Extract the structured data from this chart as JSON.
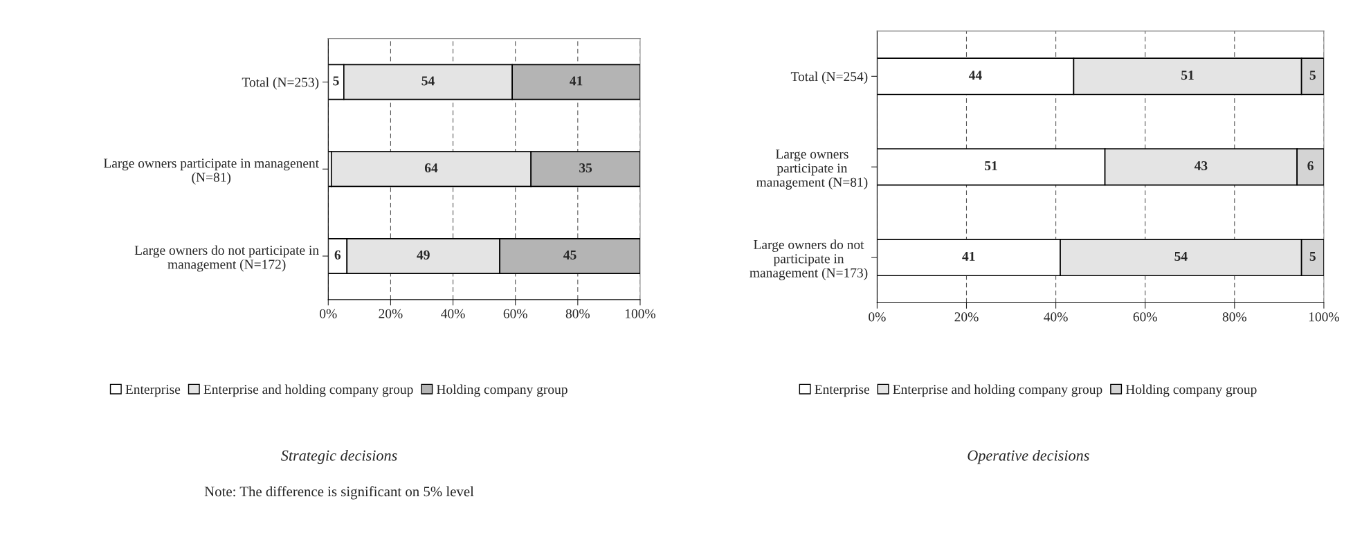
{
  "chart_data": [
    {
      "type": "bar",
      "orientation": "horizontal",
      "stacked": true,
      "title": "Strategic decisions",
      "categories": [
        "Total (N=253)",
        "Large owners participate in managenent\n(N=81)",
        "Large owners do not participate in\nmanagement (N=172)"
      ],
      "series": [
        {
          "name": "Enterprise",
          "color": "#ffffff",
          "values": [
            5,
            1,
            6
          ],
          "value_labels": [
            "5",
            null,
            "6"
          ]
        },
        {
          "name": "Enterprise and holding company group",
          "color": "#e4e4e4",
          "values": [
            54,
            64,
            49
          ],
          "value_labels": [
            "54",
            "64",
            "49"
          ]
        },
        {
          "name": "Holding company group",
          "color": "#b4b4b4",
          "values": [
            41,
            35,
            45
          ],
          "value_labels": [
            "41",
            "35",
            "45"
          ]
        }
      ],
      "xlim": [
        0,
        100
      ],
      "xticks": [
        {
          "value": 0,
          "label": "0%"
        },
        {
          "value": 20,
          "label": "20%"
        },
        {
          "value": 40,
          "label": "40%"
        },
        {
          "value": 60,
          "label": "60%"
        },
        {
          "value": 80,
          "label": "80%"
        },
        {
          "value": 100,
          "label": "100%"
        }
      ],
      "grid": "x",
      "legend": "bottom",
      "annotations": [
        "Note: The difference is significant on 5% level"
      ]
    },
    {
      "type": "bar",
      "orientation": "horizontal",
      "stacked": true,
      "title": "Operative decisions",
      "categories": [
        "Total (N=254)",
        "Large owners\nparticipate in\nmanagement (N=81)",
        "Large owners do not\nparticipate in\nmanagement (N=173)"
      ],
      "series": [
        {
          "name": "Enterprise",
          "color": "#ffffff",
          "values": [
            44,
            51,
            41
          ],
          "value_labels": [
            "44",
            "51",
            "41"
          ]
        },
        {
          "name": "Enterprise and holding company group",
          "color": "#e4e4e4",
          "values": [
            51,
            43,
            54
          ],
          "value_labels": [
            "51",
            "43",
            "54"
          ]
        },
        {
          "name": "Holding company group",
          "color": "#d4d4d4",
          "values": [
            5,
            6,
            5
          ],
          "value_labels": [
            "5",
            "6",
            "5"
          ]
        }
      ],
      "xlim": [
        0,
        100
      ],
      "xticks": [
        {
          "value": 0,
          "label": "0%"
        },
        {
          "value": 20,
          "label": "20%"
        },
        {
          "value": 40,
          "label": "40%"
        },
        {
          "value": 60,
          "label": "60%"
        },
        {
          "value": 80,
          "label": "80%"
        },
        {
          "value": 100,
          "label": "100%"
        }
      ],
      "grid": "x",
      "legend": "bottom"
    }
  ]
}
